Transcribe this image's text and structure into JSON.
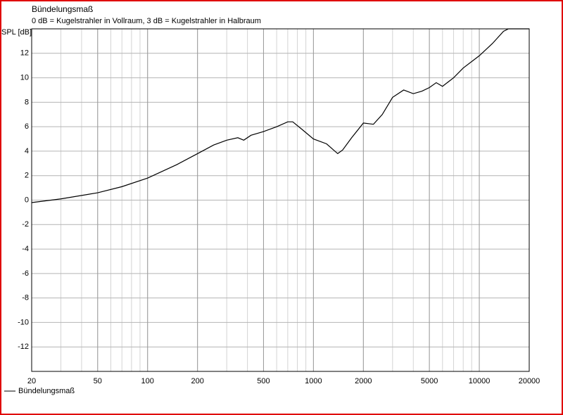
{
  "chart_data": {
    "type": "line",
    "title": "Bündelungsmaß",
    "subtitle": "0 dB = Kugelstrahler in Vollraum, 3 dB = Kugelstrahler in Halbraum",
    "y_label": "SPL [dB]",
    "x_scale": "log",
    "x": [
      20,
      30,
      50,
      70,
      100,
      150,
      200,
      250,
      300,
      350,
      380,
      420,
      500,
      600,
      700,
      750,
      850,
      1000,
      1200,
      1400,
      1500,
      1700,
      2000,
      2300,
      2600,
      3000,
      3500,
      4000,
      4500,
      5000,
      5500,
      6000,
      7000,
      8000,
      10000,
      12000,
      14000,
      15000,
      20000
    ],
    "series": [
      {
        "name": "Bündelungsmaß",
        "color": "#000000",
        "values": [
          -0.2,
          0.1,
          0.6,
          1.1,
          1.8,
          2.9,
          3.8,
          4.5,
          4.9,
          5.1,
          4.9,
          5.3,
          5.6,
          6.0,
          6.4,
          6.4,
          5.8,
          5.0,
          4.6,
          3.8,
          4.1,
          5.1,
          6.3,
          6.2,
          7.0,
          8.4,
          9.0,
          8.7,
          8.9,
          9.2,
          9.6,
          9.3,
          10.0,
          10.8,
          11.8,
          12.8,
          13.8,
          14.0,
          14.0
        ]
      }
    ],
    "xlim": [
      20,
      20000
    ],
    "xticks": [
      20,
      50,
      100,
      200,
      500,
      1000,
      2000,
      5000,
      10000,
      20000
    ],
    "ylim": [
      -14,
      14
    ],
    "yticks": [
      -12,
      -10,
      -8,
      -6,
      -4,
      -2,
      0,
      2,
      4,
      6,
      8,
      10,
      12
    ],
    "grid": true
  }
}
